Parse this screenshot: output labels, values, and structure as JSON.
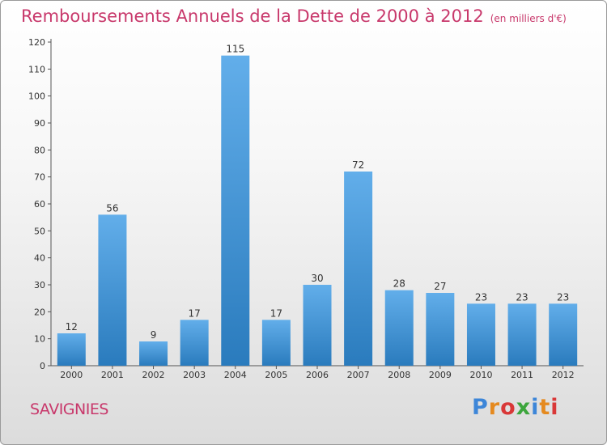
{
  "title": "Remboursements Annuels de la Dette de 2000 à 2012",
  "unit": "(en milliers d'€)",
  "town": "SAVIGNIES",
  "brand": "Proxiti",
  "colors": {
    "title": "#c8386b",
    "bar_light": "#62aeea",
    "bar_dark": "#2a7bbd",
    "logo": [
      "#3d86d8",
      "#e58a1f",
      "#d93838",
      "#3da63d",
      "#3d86d8",
      "#e58a1f",
      "#d93838"
    ]
  },
  "chart_data": {
    "type": "bar",
    "categories": [
      "2000",
      "2001",
      "2002",
      "2003",
      "2004",
      "2005",
      "2006",
      "2007",
      "2008",
      "2009",
      "2010",
      "2011",
      "2012"
    ],
    "values": [
      12,
      56,
      9,
      17,
      115,
      17,
      30,
      72,
      28,
      27,
      23,
      23,
      23
    ],
    "ylim": [
      0,
      120
    ],
    "yticks": [
      0,
      10,
      20,
      30,
      40,
      50,
      60,
      70,
      80,
      90,
      100,
      110,
      120
    ],
    "grid": false,
    "legend": "none"
  }
}
